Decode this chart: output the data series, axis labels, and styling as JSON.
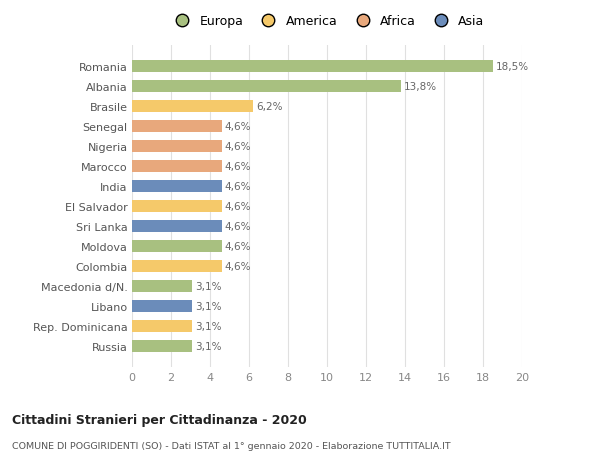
{
  "countries": [
    "Romania",
    "Albania",
    "Brasile",
    "Senegal",
    "Nigeria",
    "Marocco",
    "India",
    "El Salvador",
    "Sri Lanka",
    "Moldova",
    "Colombia",
    "Macedonia d/N.",
    "Libano",
    "Rep. Dominicana",
    "Russia"
  ],
  "values": [
    18.5,
    13.8,
    6.2,
    4.6,
    4.6,
    4.6,
    4.6,
    4.6,
    4.6,
    4.6,
    4.6,
    3.1,
    3.1,
    3.1,
    3.1
  ],
  "labels": [
    "18,5%",
    "13,8%",
    "6,2%",
    "4,6%",
    "4,6%",
    "4,6%",
    "4,6%",
    "4,6%",
    "4,6%",
    "4,6%",
    "4,6%",
    "3,1%",
    "3,1%",
    "3,1%",
    "3,1%"
  ],
  "colors": [
    "#a8c080",
    "#a8c080",
    "#f5c96a",
    "#e8a87c",
    "#e8a87c",
    "#e8a87c",
    "#6b8cba",
    "#f5c96a",
    "#6b8cba",
    "#a8c080",
    "#f5c96a",
    "#a8c080",
    "#6b8cba",
    "#f5c96a",
    "#a8c080"
  ],
  "legend_labels": [
    "Europa",
    "America",
    "Africa",
    "Asia"
  ],
  "legend_colors": [
    "#a8c080",
    "#f5c96a",
    "#e8a87c",
    "#6b8cba"
  ],
  "title": "Cittadini Stranieri per Cittadinanza - 2020",
  "subtitle": "COMUNE DI POGGIRIDENTI (SO) - Dati ISTAT al 1° gennaio 2020 - Elaborazione TUTTITALIA.IT",
  "xlim": [
    0,
    20
  ],
  "xticks": [
    0,
    2,
    4,
    6,
    8,
    10,
    12,
    14,
    16,
    18,
    20
  ],
  "bg_color": "#ffffff",
  "grid_color": "#e0e0e0"
}
